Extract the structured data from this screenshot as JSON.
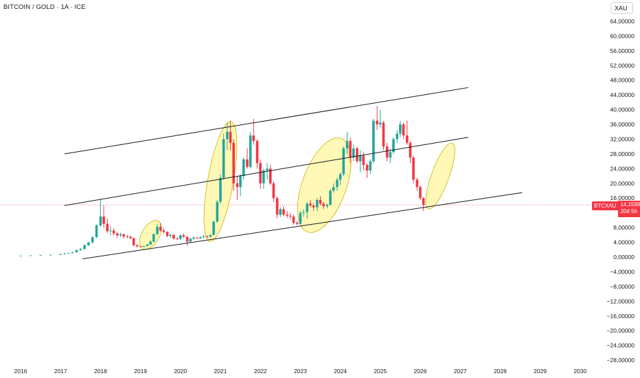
{
  "header": {
    "title": "BITCOIN / GOLD · 1A · ICE",
    "currency": "XAU"
  },
  "price_tag": {
    "ticker": "BTCXAU",
    "price": "14,15993",
    "countdown": "20d 5h"
  },
  "colors": {
    "up": "#26a69a",
    "down": "#f23645",
    "channel": "#131722",
    "highlight": "#fff59d",
    "highlight_stroke": "#c8b400",
    "price_line": "#f23645"
  },
  "chart_data": {
    "type": "candlestick",
    "y_axis_labels": [
      "64,00000",
      "60,00000",
      "56,00000",
      "52,00000",
      "48,00000",
      "44,00000",
      "40,00000",
      "36,00000",
      "32,00000",
      "28,00000",
      "24,00000",
      "20,00000",
      "16,00000",
      "8,00000",
      "4,00000",
      "0,00000",
      "−4,00000",
      "−8,00000",
      "−12,00000",
      "−16,00000",
      "−20,00000",
      "−24,00000",
      "−28,00000"
    ],
    "x_axis_labels": [
      "2016",
      "2017",
      "2018",
      "2019",
      "2020",
      "2021",
      "2022",
      "2023",
      "2024",
      "2025",
      "2026",
      "2027",
      "2028",
      "2029",
      "2030"
    ],
    "ylim": [
      -28,
      64
    ],
    "current_price": 14.15993,
    "candles": [
      {
        "t": 2016.0,
        "o": 0.3,
        "h": 0.4,
        "l": 0.2,
        "c": 0.35
      },
      {
        "t": 2016.25,
        "o": 0.35,
        "h": 0.5,
        "l": 0.3,
        "c": 0.45
      },
      {
        "t": 2016.5,
        "o": 0.45,
        "h": 0.6,
        "l": 0.4,
        "c": 0.5
      },
      {
        "t": 2016.75,
        "o": 0.5,
        "h": 0.7,
        "l": 0.45,
        "c": 0.6
      },
      {
        "t": 2017.0,
        "o": 0.6,
        "h": 0.9,
        "l": 0.55,
        "c": 0.8
      },
      {
        "t": 2017.1,
        "o": 0.8,
        "h": 1.1,
        "l": 0.7,
        "c": 1.0
      },
      {
        "t": 2017.2,
        "o": 1.0,
        "h": 1.2,
        "l": 0.9,
        "c": 1.1
      },
      {
        "t": 2017.3,
        "o": 1.1,
        "h": 1.4,
        "l": 1.0,
        "c": 1.3
      },
      {
        "t": 2017.4,
        "o": 1.3,
        "h": 2.0,
        "l": 1.2,
        "c": 1.9
      },
      {
        "t": 2017.5,
        "o": 1.9,
        "h": 2.4,
        "l": 1.7,
        "c": 2.2
      },
      {
        "t": 2017.6,
        "o": 2.2,
        "h": 3.4,
        "l": 2.0,
        "c": 3.2
      },
      {
        "t": 2017.7,
        "o": 3.2,
        "h": 4.1,
        "l": 3.0,
        "c": 4.0
      },
      {
        "t": 2017.8,
        "o": 4.0,
        "h": 5.6,
        "l": 3.6,
        "c": 5.4
      },
      {
        "t": 2017.9,
        "o": 5.4,
        "h": 8.9,
        "l": 5.1,
        "c": 8.6
      },
      {
        "t": 2018.0,
        "o": 8.6,
        "h": 15.8,
        "l": 8.2,
        "c": 11.0
      },
      {
        "t": 2018.08,
        "o": 11.0,
        "h": 14.0,
        "l": 8.0,
        "c": 9.0
      },
      {
        "t": 2018.17,
        "o": 9.0,
        "h": 10.4,
        "l": 6.5,
        "c": 7.0
      },
      {
        "t": 2018.25,
        "o": 7.0,
        "h": 8.4,
        "l": 5.9,
        "c": 7.2
      },
      {
        "t": 2018.33,
        "o": 7.2,
        "h": 7.8,
        "l": 5.8,
        "c": 6.4
      },
      {
        "t": 2018.42,
        "o": 6.4,
        "h": 6.8,
        "l": 5.2,
        "c": 5.9
      },
      {
        "t": 2018.5,
        "o": 5.9,
        "h": 6.6,
        "l": 5.4,
        "c": 6.2
      },
      {
        "t": 2018.58,
        "o": 6.2,
        "h": 6.4,
        "l": 5.0,
        "c": 5.6
      },
      {
        "t": 2018.67,
        "o": 5.6,
        "h": 6.0,
        "l": 5.1,
        "c": 5.5
      },
      {
        "t": 2018.75,
        "o": 5.5,
        "h": 5.8,
        "l": 4.9,
        "c": 5.1
      },
      {
        "t": 2018.83,
        "o": 5.1,
        "h": 5.3,
        "l": 2.9,
        "c": 3.2
      },
      {
        "t": 2018.92,
        "o": 3.2,
        "h": 3.5,
        "l": 2.6,
        "c": 2.9
      },
      {
        "t": 2019.0,
        "o": 2.9,
        "h": 3.1,
        "l": 2.6,
        "c": 2.8
      },
      {
        "t": 2019.08,
        "o": 2.8,
        "h": 3.1,
        "l": 2.6,
        "c": 3.0
      },
      {
        "t": 2019.17,
        "o": 3.0,
        "h": 3.5,
        "l": 2.9,
        "c": 3.4
      },
      {
        "t": 2019.25,
        "o": 3.4,
        "h": 4.5,
        "l": 3.3,
        "c": 4.2
      },
      {
        "t": 2019.33,
        "o": 4.2,
        "h": 6.5,
        "l": 4.0,
        "c": 6.2
      },
      {
        "t": 2019.42,
        "o": 6.2,
        "h": 9.0,
        "l": 6.0,
        "c": 8.2
      },
      {
        "t": 2019.5,
        "o": 8.2,
        "h": 9.3,
        "l": 6.9,
        "c": 7.2
      },
      {
        "t": 2019.58,
        "o": 7.2,
        "h": 7.8,
        "l": 6.4,
        "c": 6.8
      },
      {
        "t": 2019.67,
        "o": 6.8,
        "h": 7.0,
        "l": 5.4,
        "c": 5.7
      },
      {
        "t": 2019.75,
        "o": 5.7,
        "h": 6.4,
        "l": 5.2,
        "c": 6.0
      },
      {
        "t": 2019.83,
        "o": 6.0,
        "h": 6.3,
        "l": 4.8,
        "c": 5.0
      },
      {
        "t": 2019.92,
        "o": 5.0,
        "h": 5.4,
        "l": 4.6,
        "c": 4.9
      },
      {
        "t": 2020.0,
        "o": 4.9,
        "h": 6.2,
        "l": 4.7,
        "c": 5.9
      },
      {
        "t": 2020.08,
        "o": 5.9,
        "h": 6.4,
        "l": 5.2,
        "c": 5.5
      },
      {
        "t": 2020.17,
        "o": 5.5,
        "h": 5.6,
        "l": 3.0,
        "c": 4.2
      },
      {
        "t": 2020.25,
        "o": 4.2,
        "h": 5.2,
        "l": 4.0,
        "c": 5.0
      },
      {
        "t": 2020.33,
        "o": 5.0,
        "h": 5.6,
        "l": 4.7,
        "c": 5.3
      },
      {
        "t": 2020.42,
        "o": 5.3,
        "h": 5.4,
        "l": 4.9,
        "c": 5.1
      },
      {
        "t": 2020.5,
        "o": 5.1,
        "h": 5.6,
        "l": 4.9,
        "c": 5.4
      },
      {
        "t": 2020.58,
        "o": 5.4,
        "h": 6.0,
        "l": 5.1,
        "c": 5.6
      },
      {
        "t": 2020.67,
        "o": 5.6,
        "h": 5.9,
        "l": 5.2,
        "c": 5.5
      },
      {
        "t": 2020.75,
        "o": 5.5,
        "h": 6.2,
        "l": 5.3,
        "c": 6.0
      },
      {
        "t": 2020.83,
        "o": 6.0,
        "h": 9.8,
        "l": 5.9,
        "c": 9.6
      },
      {
        "t": 2020.92,
        "o": 9.6,
        "h": 15.5,
        "l": 9.4,
        "c": 15.0
      },
      {
        "t": 2021.0,
        "o": 15.0,
        "h": 22.5,
        "l": 14.5,
        "c": 21.5
      },
      {
        "t": 2021.08,
        "o": 21.5,
        "h": 33.5,
        "l": 21.0,
        "c": 32.0
      },
      {
        "t": 2021.17,
        "o": 32.0,
        "h": 36.5,
        "l": 29.0,
        "c": 34.0
      },
      {
        "t": 2021.25,
        "o": 34.0,
        "h": 37.0,
        "l": 29.0,
        "c": 31.0
      },
      {
        "t": 2021.33,
        "o": 31.0,
        "h": 32.0,
        "l": 18.0,
        "c": 20.0
      },
      {
        "t": 2021.42,
        "o": 20.0,
        "h": 22.0,
        "l": 15.5,
        "c": 19.0
      },
      {
        "t": 2021.5,
        "o": 19.0,
        "h": 22.5,
        "l": 16.5,
        "c": 22.0
      },
      {
        "t": 2021.58,
        "o": 22.0,
        "h": 27.0,
        "l": 21.0,
        "c": 26.5
      },
      {
        "t": 2021.67,
        "o": 26.5,
        "h": 29.5,
        "l": 24.0,
        "c": 24.5
      },
      {
        "t": 2021.75,
        "o": 24.5,
        "h": 34.0,
        "l": 24.0,
        "c": 33.0
      },
      {
        "t": 2021.83,
        "o": 33.0,
        "h": 37.5,
        "l": 30.5,
        "c": 31.5
      },
      {
        "t": 2021.92,
        "o": 31.5,
        "h": 32.0,
        "l": 24.0,
        "c": 25.5
      },
      {
        "t": 2022.0,
        "o": 25.5,
        "h": 26.5,
        "l": 18.5,
        "c": 20.0
      },
      {
        "t": 2022.08,
        "o": 20.0,
        "h": 24.0,
        "l": 18.5,
        "c": 23.5
      },
      {
        "t": 2022.17,
        "o": 23.5,
        "h": 25.5,
        "l": 21.0,
        "c": 24.0
      },
      {
        "t": 2022.25,
        "o": 24.0,
        "h": 25.0,
        "l": 19.5,
        "c": 20.0
      },
      {
        "t": 2022.33,
        "o": 20.0,
        "h": 20.5,
        "l": 15.0,
        "c": 16.0
      },
      {
        "t": 2022.42,
        "o": 16.0,
        "h": 16.5,
        "l": 10.5,
        "c": 11.5
      },
      {
        "t": 2022.5,
        "o": 11.5,
        "h": 13.5,
        "l": 10.8,
        "c": 13.0
      },
      {
        "t": 2022.58,
        "o": 13.0,
        "h": 13.8,
        "l": 11.0,
        "c": 11.5
      },
      {
        "t": 2022.67,
        "o": 11.5,
        "h": 12.5,
        "l": 10.6,
        "c": 11.2
      },
      {
        "t": 2022.75,
        "o": 11.2,
        "h": 12.0,
        "l": 10.2,
        "c": 11.0
      },
      {
        "t": 2022.83,
        "o": 11.0,
        "h": 11.5,
        "l": 8.8,
        "c": 9.3
      },
      {
        "t": 2022.92,
        "o": 9.3,
        "h": 9.8,
        "l": 8.6,
        "c": 9.0
      },
      {
        "t": 2023.0,
        "o": 9.0,
        "h": 12.5,
        "l": 8.9,
        "c": 12.0
      },
      {
        "t": 2023.08,
        "o": 12.0,
        "h": 13.0,
        "l": 11.0,
        "c": 12.2
      },
      {
        "t": 2023.17,
        "o": 12.2,
        "h": 15.0,
        "l": 10.5,
        "c": 14.5
      },
      {
        "t": 2023.25,
        "o": 14.5,
        "h": 15.5,
        "l": 13.5,
        "c": 14.0
      },
      {
        "t": 2023.33,
        "o": 14.0,
        "h": 14.5,
        "l": 12.5,
        "c": 13.5
      },
      {
        "t": 2023.42,
        "o": 13.5,
        "h": 16.0,
        "l": 12.5,
        "c": 15.5
      },
      {
        "t": 2023.5,
        "o": 15.5,
        "h": 16.5,
        "l": 14.0,
        "c": 14.5
      },
      {
        "t": 2023.58,
        "o": 14.5,
        "h": 15.0,
        "l": 13.0,
        "c": 13.8
      },
      {
        "t": 2023.67,
        "o": 13.8,
        "h": 14.5,
        "l": 13.2,
        "c": 14.2
      },
      {
        "t": 2023.75,
        "o": 14.2,
        "h": 18.5,
        "l": 14.0,
        "c": 18.0
      },
      {
        "t": 2023.83,
        "o": 18.0,
        "h": 20.0,
        "l": 17.5,
        "c": 19.0
      },
      {
        "t": 2023.92,
        "o": 19.0,
        "h": 21.5,
        "l": 18.0,
        "c": 21.0
      },
      {
        "t": 2024.0,
        "o": 21.0,
        "h": 23.0,
        "l": 19.5,
        "c": 22.5
      },
      {
        "t": 2024.08,
        "o": 22.5,
        "h": 30.0,
        "l": 22.0,
        "c": 29.5
      },
      {
        "t": 2024.17,
        "o": 29.5,
        "h": 34.0,
        "l": 28.0,
        "c": 31.5
      },
      {
        "t": 2024.25,
        "o": 31.5,
        "h": 32.5,
        "l": 25.5,
        "c": 27.0
      },
      {
        "t": 2024.33,
        "o": 27.0,
        "h": 30.5,
        "l": 26.0,
        "c": 29.5
      },
      {
        "t": 2024.42,
        "o": 29.5,
        "h": 30.0,
        "l": 25.5,
        "c": 26.0
      },
      {
        "t": 2024.5,
        "o": 26.0,
        "h": 29.0,
        "l": 23.0,
        "c": 27.5
      },
      {
        "t": 2024.58,
        "o": 27.5,
        "h": 28.5,
        "l": 23.5,
        "c": 25.0
      },
      {
        "t": 2024.67,
        "o": 25.0,
        "h": 25.5,
        "l": 21.5,
        "c": 23.5
      },
      {
        "t": 2024.75,
        "o": 23.5,
        "h": 26.5,
        "l": 22.5,
        "c": 26.0
      },
      {
        "t": 2024.83,
        "o": 26.0,
        "h": 37.5,
        "l": 25.5,
        "c": 37.0
      },
      {
        "t": 2024.92,
        "o": 37.0,
        "h": 41.0,
        "l": 34.5,
        "c": 36.0
      },
      {
        "t": 2025.0,
        "o": 36.0,
        "h": 40.0,
        "l": 35.0,
        "c": 36.5
      },
      {
        "t": 2025.08,
        "o": 36.5,
        "h": 37.0,
        "l": 29.0,
        "c": 30.0
      },
      {
        "t": 2025.17,
        "o": 30.0,
        "h": 31.0,
        "l": 26.0,
        "c": 27.0
      },
      {
        "t": 2025.25,
        "o": 27.0,
        "h": 29.5,
        "l": 25.5,
        "c": 28.5
      },
      {
        "t": 2025.33,
        "o": 28.5,
        "h": 32.5,
        "l": 28.0,
        "c": 32.0
      },
      {
        "t": 2025.42,
        "o": 32.0,
        "h": 34.5,
        "l": 31.0,
        "c": 33.5
      },
      {
        "t": 2025.5,
        "o": 33.5,
        "h": 37.0,
        "l": 32.5,
        "c": 36.0
      },
      {
        "t": 2025.58,
        "o": 36.0,
        "h": 36.5,
        "l": 32.0,
        "c": 33.0
      },
      {
        "t": 2025.67,
        "o": 33.0,
        "h": 37.0,
        "l": 30.5,
        "c": 31.0
      },
      {
        "t": 2025.75,
        "o": 31.0,
        "h": 31.5,
        "l": 25.5,
        "c": 27.0
      },
      {
        "t": 2025.83,
        "o": 27.0,
        "h": 27.5,
        "l": 20.0,
        "c": 21.0
      },
      {
        "t": 2025.92,
        "o": 21.0,
        "h": 21.5,
        "l": 18.0,
        "c": 19.0
      },
      {
        "t": 2026.0,
        "o": 19.0,
        "h": 19.5,
        "l": 15.5,
        "c": 16.0
      },
      {
        "t": 2026.08,
        "o": 16.0,
        "h": 16.3,
        "l": 12.5,
        "c": 14.16
      }
    ],
    "channel_lines": [
      {
        "x1": 2017.1,
        "y1": 28.0,
        "x2": 2027.2,
        "y2": 46.0
      },
      {
        "x1": 2017.1,
        "y1": 14.0,
        "x2": 2027.2,
        "y2": 32.5
      },
      {
        "x1": 2017.55,
        "y1": -0.5,
        "x2": 2028.55,
        "y2": 17.5
      }
    ],
    "highlights": [
      {
        "cx": 2019.25,
        "cy": 6.0,
        "rx": 0.22,
        "ry": 4.3,
        "angle": -60
      },
      {
        "cx": 2021.0,
        "cy": 20.5,
        "rx": 0.32,
        "ry": 16.5,
        "angle": -80
      },
      {
        "cx": 2023.6,
        "cy": 19.5,
        "rx": 0.55,
        "ry": 13.5,
        "angle": -70
      },
      {
        "cx": 2026.5,
        "cy": 22.0,
        "rx": 0.22,
        "ry": 9.5,
        "angle": -70
      }
    ]
  }
}
